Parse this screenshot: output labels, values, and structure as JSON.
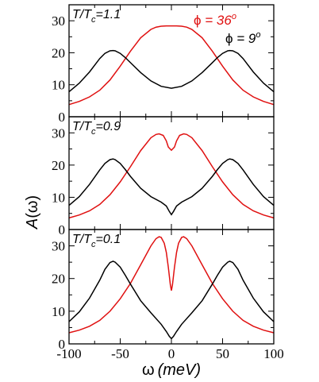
{
  "chart_data": {
    "type": "line",
    "xlabel_sym": "ω",
    "xlabel_unit": "(meV)",
    "ylabel_sym": "A",
    "ylabel_arg": "(ω)",
    "xlim": [
      -100,
      100
    ],
    "xticks": [
      "-100",
      "-50",
      "0",
      "50",
      "100"
    ],
    "colors": {
      "red": "#e01010",
      "black": "#000000"
    },
    "legend": [
      {
        "sym": "ϕ",
        "eq": " = ",
        "num": "36",
        "sup": "o",
        "color": "#e01010"
      },
      {
        "sym": "ϕ",
        "eq": " = ",
        "num": "9",
        "sup": "o",
        "color": "#000000"
      }
    ],
    "panels": [
      {
        "label_T": "T/T",
        "label_sub": "c",
        "label_val": "=1.1",
        "ylim": [
          0,
          35
        ],
        "yticks": [
          "0",
          "10",
          "20",
          "30"
        ],
        "series": [
          {
            "color": "#e01010",
            "x": [
              -100,
              -90,
              -80,
              -70,
              -60,
              -50,
              -40,
              -30,
              -20,
              -15,
              -10,
              -5,
              0,
              5,
              10,
              15,
              20,
              30,
              40,
              50,
              60,
              70,
              80,
              90,
              100
            ],
            "y": [
              3.8,
              4.8,
              6.2,
              8.3,
              11.5,
              15.8,
              20.5,
              24.7,
              27.3,
              28.0,
              28.3,
              28.4,
              28.4,
              28.4,
              28.3,
              28.0,
              27.3,
              24.7,
              20.5,
              15.8,
              11.5,
              8.3,
              6.2,
              4.8,
              3.8
            ]
          },
          {
            "color": "#000000",
            "x": [
              -100,
              -90,
              -80,
              -70,
              -65,
              -60,
              -57,
              -55,
              -50,
              -45,
              -40,
              -30,
              -20,
              -10,
              0,
              10,
              20,
              30,
              40,
              45,
              50,
              55,
              57,
              60,
              65,
              70,
              80,
              90,
              100
            ],
            "y": [
              7.8,
              10.5,
              14.0,
              18.2,
              19.8,
              20.6,
              20.7,
              20.6,
              19.8,
              18.5,
              16.9,
              13.8,
              11.2,
              9.5,
              8.9,
              9.5,
              11.2,
              13.8,
              16.9,
              18.5,
              19.8,
              20.6,
              20.7,
              20.6,
              19.8,
              18.2,
              14.0,
              10.5,
              7.8
            ]
          }
        ]
      },
      {
        "label_T": "T/T",
        "label_sub": "c",
        "label_val": "=0.9",
        "ylim": [
          0,
          35
        ],
        "yticks": [
          "0",
          "10",
          "20",
          "30"
        ],
        "series": [
          {
            "color": "#e01010",
            "x": [
              -100,
              -90,
              -80,
              -70,
              -60,
              -50,
              -40,
              -30,
              -20,
              -15,
              -12,
              -8,
              -5,
              -3,
              0,
              3,
              5,
              8,
              12,
              15,
              20,
              30,
              40,
              50,
              60,
              70,
              80,
              90,
              100
            ],
            "y": [
              3.6,
              4.5,
              5.8,
              7.8,
              10.8,
              14.8,
              19.5,
              24.5,
              28.5,
              29.5,
              29.7,
              29.2,
              27.5,
              25.6,
              24.6,
              25.6,
              27.5,
              29.2,
              29.7,
              29.5,
              28.5,
              24.5,
              19.5,
              14.8,
              10.8,
              7.8,
              5.8,
              4.5,
              3.6
            ]
          },
          {
            "color": "#000000",
            "x": [
              -100,
              -90,
              -80,
              -70,
              -65,
              -60,
              -57,
              -55,
              -50,
              -45,
              -40,
              -30,
              -20,
              -10,
              -5,
              -2,
              0,
              2,
              5,
              10,
              20,
              30,
              40,
              45,
              50,
              55,
              57,
              60,
              65,
              70,
              80,
              90,
              100
            ],
            "y": [
              7.5,
              10.2,
              14.0,
              18.5,
              20.5,
              21.7,
              21.9,
              21.7,
              20.5,
              18.6,
              16.5,
              12.8,
              10.2,
              8.5,
              7.3,
              5.6,
              4.6,
              5.6,
              7.3,
              8.5,
              10.2,
              12.8,
              16.5,
              18.6,
              20.5,
              21.7,
              21.9,
              21.7,
              20.5,
              18.5,
              14.0,
              10.2,
              7.5
            ]
          }
        ]
      },
      {
        "label_T": "T/T",
        "label_sub": "c",
        "label_val": "=0.1",
        "ylim": [
          0,
          35
        ],
        "yticks": [
          "0",
          "10",
          "20",
          "30"
        ],
        "series": [
          {
            "color": "#e01010",
            "x": [
              -100,
              -90,
              -80,
              -70,
              -60,
              -50,
              -40,
              -30,
              -20,
              -15,
              -12,
              -10,
              -7,
              -5,
              -3,
              -1,
              0,
              1,
              3,
              5,
              7,
              10,
              12,
              15,
              20,
              30,
              40,
              50,
              60,
              70,
              80,
              90,
              100
            ],
            "y": [
              3.4,
              4.2,
              5.4,
              7.2,
              10.0,
              13.8,
              18.5,
              24.2,
              30.0,
              32.2,
              32.8,
              32.6,
              30.8,
              28.0,
              23.5,
              18.0,
              16.3,
              18.0,
              23.5,
              28.0,
              30.8,
              32.6,
              32.8,
              32.2,
              30.0,
              24.2,
              18.5,
              13.8,
              10.0,
              7.2,
              5.4,
              4.2,
              3.4
            ]
          },
          {
            "color": "#000000",
            "x": [
              -100,
              -90,
              -80,
              -70,
              -65,
              -60,
              -57,
              -55,
              -50,
              -45,
              -40,
              -30,
              -20,
              -10,
              -5,
              -2,
              0,
              2,
              5,
              10,
              20,
              30,
              40,
              45,
              50,
              55,
              57,
              60,
              65,
              70,
              80,
              90,
              100
            ],
            "y": [
              6.8,
              9.8,
              14.0,
              19.5,
              22.8,
              24.9,
              25.3,
              25.0,
              23.5,
              21.0,
              18.3,
              13.2,
              9.5,
              6.0,
              3.8,
              2.3,
              1.6,
              2.3,
              3.8,
              6.0,
              9.5,
              13.2,
              18.3,
              21.0,
              23.5,
              25.0,
              25.3,
              24.9,
              22.8,
              19.5,
              14.0,
              9.8,
              6.8
            ]
          }
        ]
      }
    ]
  }
}
